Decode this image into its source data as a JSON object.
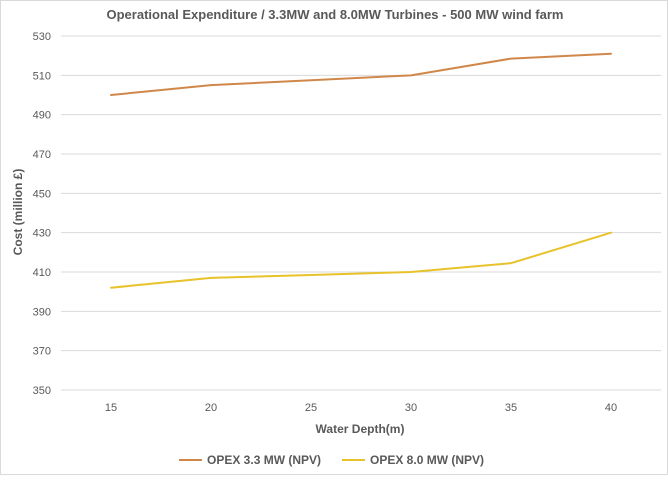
{
  "chart_data": {
    "type": "line",
    "title": "Operational Expenditure /  3.3MW and 8.0MW Turbines - 500 MW wind farm",
    "xlabel": "Water Depth(m)",
    "ylabel": "Cost (million £)",
    "x": [
      15,
      20,
      25,
      30,
      35,
      40
    ],
    "ylim": [
      350,
      530
    ],
    "yticks": [
      350,
      370,
      390,
      410,
      430,
      450,
      470,
      490,
      510,
      530
    ],
    "grid": true,
    "legend": "bottom",
    "series": [
      {
        "name": "OPEX 3.3 MW (NPV)",
        "color": "#d0884a",
        "values": [
          500,
          505,
          507.5,
          510,
          518.5,
          521
        ]
      },
      {
        "name": "OPEX 8.0 MW (NPV)",
        "color": "#e8c22a",
        "values": [
          402,
          407,
          408.5,
          410,
          414.5,
          430
        ]
      }
    ]
  }
}
